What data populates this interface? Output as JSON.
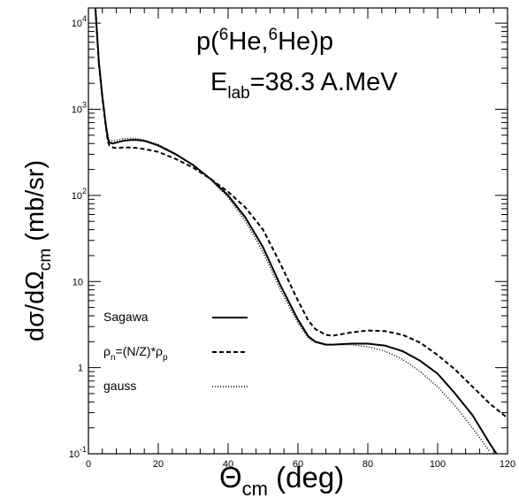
{
  "chart_data": {
    "type": "line",
    "title_parts": {
      "p": "p(",
      "m1": "6",
      "a": "He,",
      "m2": "6",
      "b": "He)p"
    },
    "subtitle_parts": {
      "e": "E",
      "sub": "lab",
      "rest": "=38.3 A.MeV"
    },
    "xlabel_parts": {
      "theta": "Θ",
      "sub": "cm",
      "rest": " (deg)"
    },
    "ylabel_parts": {
      "main": "dσ/dΩ",
      "sub": "cm",
      "rest": " (mb/sr)"
    },
    "xlim": [
      0,
      120
    ],
    "ylim": [
      0.1,
      15000
    ],
    "yscale": "log",
    "x_ticks": [
      "0",
      "20",
      "40",
      "60",
      "80",
      "100",
      "120"
    ],
    "y_ticks": [
      {
        "value": 0.1,
        "base": "10",
        "exp": "-1"
      },
      {
        "value": 1,
        "base": "1",
        "exp": ""
      },
      {
        "value": 10,
        "base": "10",
        "exp": ""
      },
      {
        "value": 100,
        "base": "10",
        "exp": "2"
      },
      {
        "value": 1000,
        "base": "10",
        "exp": "3"
      },
      {
        "value": 10000,
        "base": "10",
        "exp": "4"
      }
    ],
    "grid": false,
    "legend_position": "bottom-left",
    "series": [
      {
        "name": "Sagawa",
        "style": "solid",
        "color": "#000000",
        "x": [
          2,
          3,
          4,
          5,
          5.6,
          6,
          7,
          8,
          10,
          12,
          14,
          16,
          20,
          25,
          30,
          35,
          40,
          45,
          50,
          55,
          60,
          63,
          65,
          68,
          70,
          75,
          80,
          85,
          90,
          95,
          100,
          105,
          110,
          115,
          118
        ],
        "y": [
          15000,
          3500,
          1400,
          650,
          450,
          410,
          400,
          410,
          430,
          440,
          440,
          430,
          380,
          300,
          225,
          155,
          100,
          55,
          25,
          9,
          3.6,
          2.3,
          2.0,
          1.85,
          1.85,
          1.9,
          1.9,
          1.8,
          1.55,
          1.2,
          0.85,
          0.5,
          0.28,
          0.13,
          0.085
        ]
      },
      {
        "name": "ρ_n=(N/Z)*ρ_p",
        "label_parts": {
          "rho1": "ρ",
          "sub1": "n",
          "mid": "=(N/Z)*ρ",
          "sub2": "p"
        },
        "style": "dashed",
        "color": "#000000",
        "x": [
          2,
          3,
          4,
          5,
          5.6,
          6,
          7,
          8,
          10,
          12,
          14,
          16,
          20,
          25,
          30,
          35,
          40,
          45,
          50,
          55,
          60,
          63,
          65,
          68,
          70,
          75,
          80,
          85,
          90,
          95,
          100,
          105,
          110,
          115,
          120
        ],
        "y": [
          15000,
          3400,
          1350,
          620,
          420,
          380,
          360,
          355,
          360,
          360,
          355,
          345,
          320,
          265,
          210,
          155,
          110,
          72,
          40,
          16,
          6.0,
          3.5,
          2.8,
          2.4,
          2.35,
          2.55,
          2.7,
          2.65,
          2.4,
          1.95,
          1.4,
          0.95,
          0.6,
          0.38,
          0.26
        ]
      },
      {
        "name": "gauss",
        "style": "dotted",
        "color": "#000000",
        "x": [
          2,
          3,
          4,
          5,
          5.6,
          6,
          7,
          8,
          10,
          12,
          14,
          16,
          20,
          25,
          30,
          35,
          40,
          45,
          50,
          55,
          60,
          63,
          65,
          68,
          70,
          75,
          80,
          85,
          90,
          95,
          100,
          105,
          110,
          115
        ],
        "y": [
          15000,
          3500,
          1400,
          680,
          480,
          440,
          425,
          435,
          455,
          460,
          455,
          440,
          390,
          305,
          225,
          152,
          95,
          50,
          22,
          8,
          3.3,
          2.2,
          1.95,
          1.85,
          1.85,
          1.85,
          1.75,
          1.55,
          1.25,
          0.9,
          0.6,
          0.36,
          0.2,
          0.105
        ]
      }
    ]
  }
}
